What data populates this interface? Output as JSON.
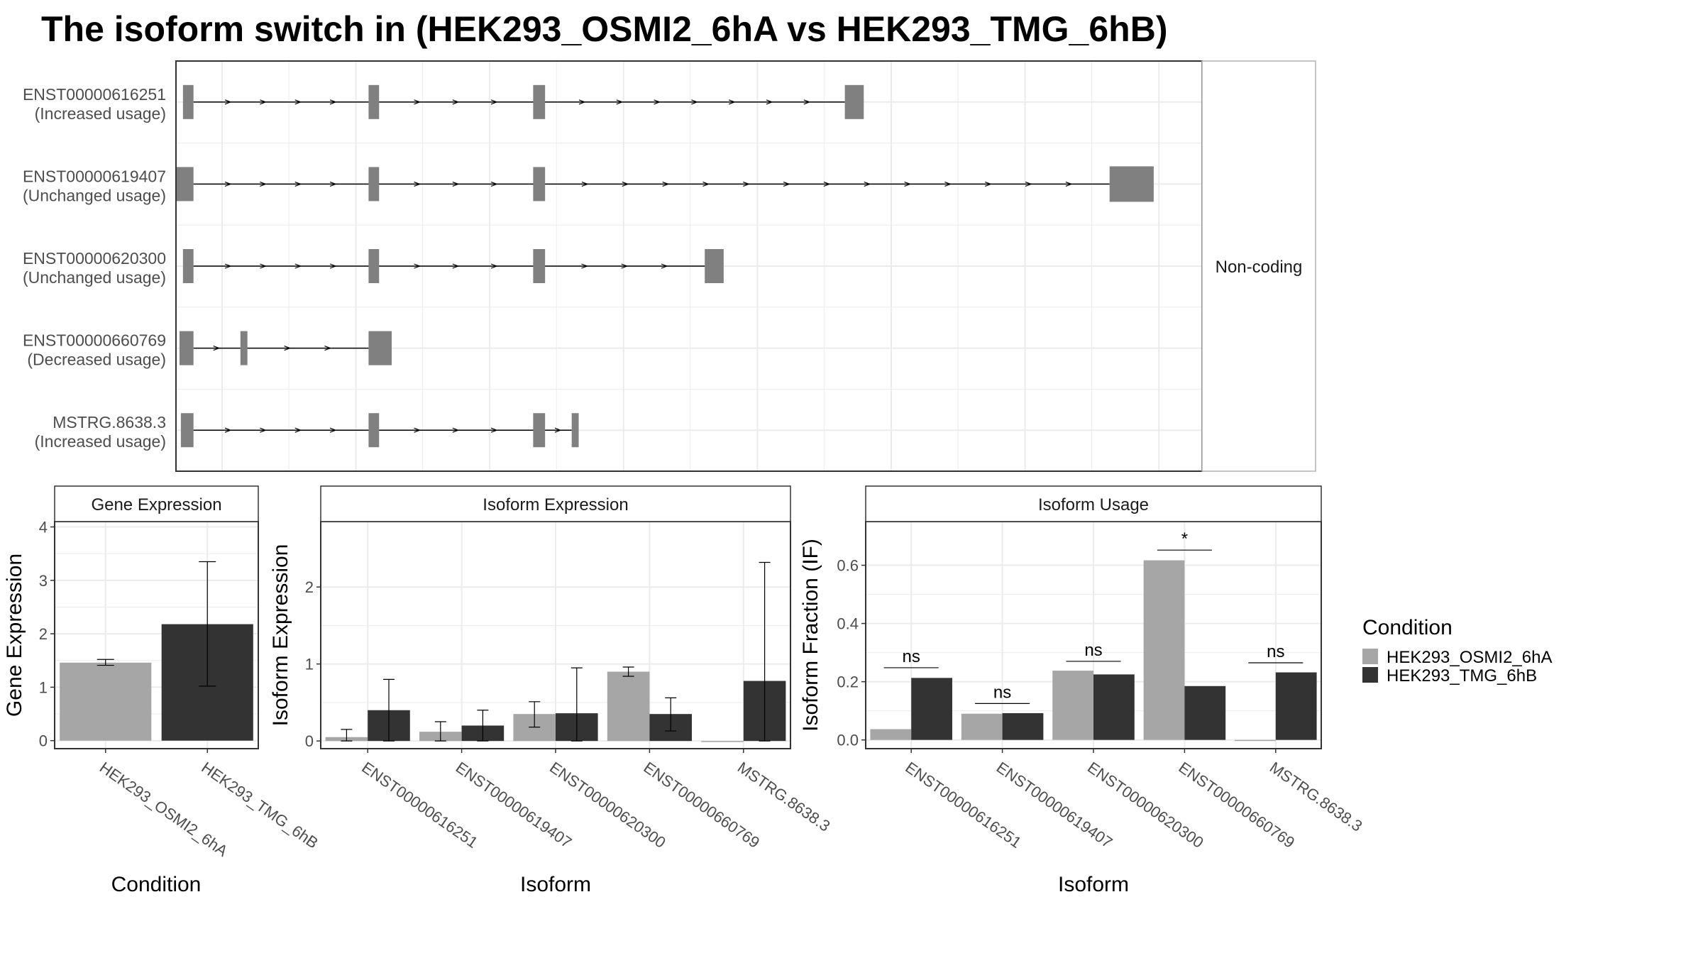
{
  "title": "The isoform switch in  (HEK293_OSMI2_6hA vs HEK293_TMG_6hB)",
  "colors": {
    "cond1": "#a6a6a6",
    "cond2": "#333333",
    "exon": "#808080",
    "grid": "#ebebeb",
    "panel_border": "#333333",
    "strip_fill": "#ffffff"
  },
  "conditions": [
    "HEK293_OSMI2_6hA",
    "HEK293_TMG_6hB"
  ],
  "legend": {
    "title": "Condition",
    "position": "right"
  },
  "chart_data": [
    {
      "type": "transcript-structure",
      "facet_label": "Non-coding",
      "xlim": [
        0,
        1.465
      ],
      "transcripts": [
        {
          "id": "ENST00000616251",
          "usage": "(Increased usage)",
          "exons": [
            [
              0.01,
              0.025
            ],
            [
              0.275,
              0.29
            ],
            [
              0.51,
              0.527
            ],
            [
              0.955,
              0.982
            ]
          ],
          "height": "small"
        },
        {
          "id": "ENST00000619407",
          "usage": "(Unchanged usage)",
          "exons": [
            [
              0.0,
              0.025
            ],
            [
              0.275,
              0.29
            ],
            [
              0.51,
              0.527
            ],
            [
              1.333,
              1.396
            ]
          ],
          "height": "large"
        },
        {
          "id": "ENST00000620300",
          "usage": "(Unchanged usage)",
          "exons": [
            [
              0.01,
              0.025
            ],
            [
              0.275,
              0.29
            ],
            [
              0.51,
              0.527
            ],
            [
              0.755,
              0.782
            ]
          ],
          "height": "small"
        },
        {
          "id": "ENST00000660769",
          "usage": "(Decreased usage)",
          "exons": [
            [
              0.005,
              0.025
            ],
            [
              0.092,
              0.102
            ],
            [
              0.275,
              0.308
            ]
          ],
          "height": "small"
        },
        {
          "id": "MSTRG.8638.3",
          "usage": "(Increased usage)",
          "exons": [
            [
              0.007,
              0.025
            ],
            [
              0.275,
              0.29
            ],
            [
              0.51,
              0.527
            ],
            [
              0.565,
              0.575
            ]
          ],
          "height": "small"
        }
      ]
    },
    {
      "type": "bar",
      "strip": "Gene Expression",
      "xlabel": "Condition",
      "ylabel": "Gene Expression",
      "ylim": [
        -0.15,
        4.1
      ],
      "yticks": [
        0,
        1,
        2,
        3,
        4
      ],
      "categories": [
        "HEK293_OSMI2_6hA",
        "HEK293_TMG_6hB"
      ],
      "values": [
        1.46,
        2.18
      ],
      "err_low": [
        1.41,
        1.02
      ],
      "err_high": [
        1.52,
        3.35
      ]
    },
    {
      "type": "bar",
      "strip": "Isoform Expression",
      "xlabel": "Isoform",
      "ylabel": "Isoform Expression",
      "ylim": [
        -0.1,
        2.85
      ],
      "yticks": [
        0,
        1,
        2
      ],
      "categories": [
        "ENST00000616251",
        "ENST00000619407",
        "ENST00000620300",
        "ENST00000660769",
        "MSTRG.8638.3"
      ],
      "series": [
        {
          "name": "HEK293_OSMI2_6hA",
          "values": [
            0.05,
            0.12,
            0.35,
            0.9,
            0.0
          ],
          "err_low": [
            0.0,
            0.0,
            0.18,
            0.84,
            0.0
          ],
          "err_high": [
            0.15,
            0.25,
            0.51,
            0.96,
            0.0
          ]
        },
        {
          "name": "HEK293_TMG_6hB",
          "values": [
            0.4,
            0.2,
            0.36,
            0.35,
            0.78
          ],
          "err_low": [
            0.0,
            0.0,
            0.0,
            0.13,
            0.0
          ],
          "err_high": [
            0.8,
            0.4,
            0.95,
            0.56,
            2.32
          ]
        }
      ]
    },
    {
      "type": "bar",
      "strip": "Isoform Usage",
      "xlabel": "Isoform",
      "ylabel": "Isoform Fraction (IF)",
      "ylim": [
        -0.03,
        0.75
      ],
      "yticks": [
        0.0,
        0.2,
        0.4,
        0.6
      ],
      "ytick_labels": [
        "0.0",
        "0.2",
        "0.4",
        "0.6"
      ],
      "categories": [
        "ENST00000616251",
        "ENST00000619407",
        "ENST00000620300",
        "ENST00000660769",
        "MSTRG.8638.3"
      ],
      "series": [
        {
          "name": "HEK293_OSMI2_6hA",
          "values": [
            0.037,
            0.09,
            0.238,
            0.617,
            0.0
          ]
        },
        {
          "name": "HEK293_TMG_6hB",
          "values": [
            0.213,
            0.092,
            0.225,
            0.185,
            0.232
          ]
        }
      ],
      "significance": [
        {
          "label": "ns",
          "y": 0.248
        },
        {
          "label": "ns",
          "y": 0.125
        },
        {
          "label": "ns",
          "y": 0.27
        },
        {
          "label": "*",
          "y": 0.652
        },
        {
          "label": "ns",
          "y": 0.265
        }
      ]
    }
  ]
}
